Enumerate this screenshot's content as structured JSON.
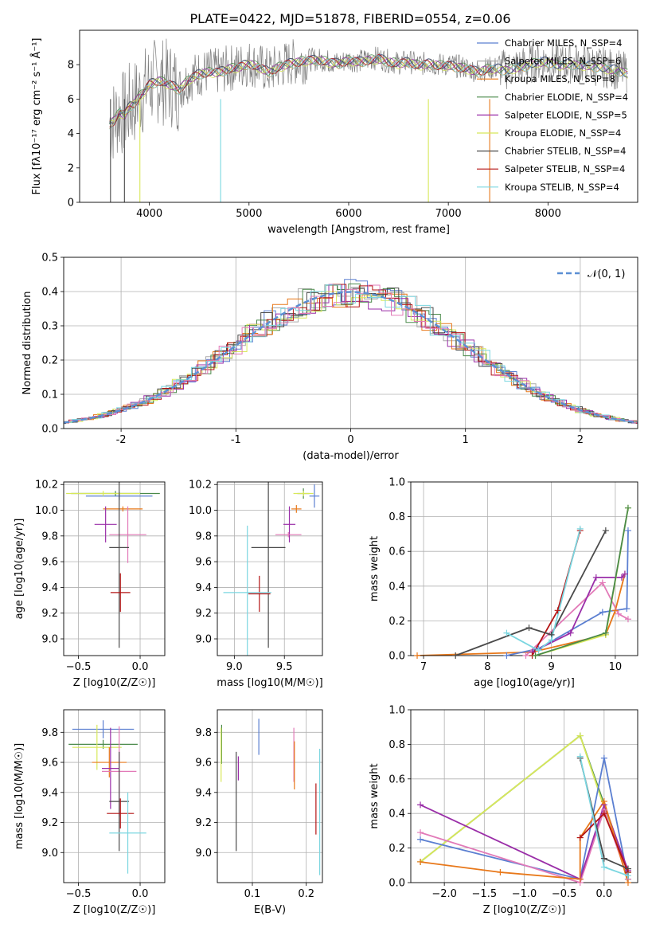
{
  "figure": {
    "title": "PLATE=0422, MJD=51878, FIBERID=0554, z=0.06"
  },
  "colors": {
    "Chabrier MILES": "#5b7fd1",
    "Salpeter MILES": "#aaaaaa",
    "Kroupa MILES": "#e8781a",
    "Chabrier ELODIE": "#4a8a4a",
    "Salpeter ELODIE": "#9a2ea8",
    "Kroupa ELODIE": "#d8e85a",
    "Chabrier STELIB": "#4a4a4a",
    "Salpeter STELIB": "#b41414",
    "Kroupa STELIB": "#7ad6e0",
    "pink": "#e27ab8",
    "data": "#7f7f7f",
    "normal": "#5b8fd4"
  },
  "chart_data": [
    {
      "id": "spectrum",
      "type": "line",
      "title": "PLATE=0422, MJD=51878, FIBERID=0554, z=0.06",
      "xlabel": "wavelength [Angstrom, rest frame]",
      "ylabel": "Flux [fλ10⁻¹⁷ erg cm⁻² s⁻¹ Å⁻¹]",
      "xlim": [
        3300,
        8900
      ],
      "ylim": [
        0,
        10
      ],
      "xticks": [
        4000,
        5000,
        6000,
        7000,
        8000
      ],
      "yticks": [
        0,
        2,
        4,
        6,
        8
      ],
      "grid": false,
      "legend_position": "top-right",
      "series": [
        {
          "name": "Chabrier MILES, N_SSP=4",
          "color": "#5b7fd1"
        },
        {
          "name": "Salpeter MILES, N_SSP=6",
          "color": "#aaaaaa"
        },
        {
          "name": "Kroupa MILES, N_SSP=8",
          "color": "#e8781a"
        },
        {
          "name": "Chabrier ELODIE, N_SSP=4",
          "color": "#4a8a4a"
        },
        {
          "name": "Salpeter ELODIE, N_SSP=5",
          "color": "#9a2ea8"
        },
        {
          "name": "Kroupa ELODIE, N_SSP=4",
          "color": "#d8e85a"
        },
        {
          "name": "Chabrier STELIB, N_SSP=4",
          "color": "#4a4a4a"
        },
        {
          "name": "Salpeter STELIB, N_SSP=4",
          "color": "#b41414"
        },
        {
          "name": "Kroupa STELIB, N_SSP=4",
          "color": "#7ad6e0"
        }
      ],
      "data_spectrum_x": [
        3600,
        3650,
        3700,
        3750,
        3800,
        3850,
        3900,
        3950,
        4000,
        4100,
        4200,
        4300,
        4400,
        4500,
        4600,
        4700,
        4800,
        4900,
        5000,
        5100,
        5200,
        5300,
        5400,
        5500,
        5600,
        5700,
        5800,
        5900,
        6000,
        6100,
        6200,
        6300,
        6400,
        6500,
        6600,
        6700,
        6800,
        6900,
        7000,
        7100,
        7200,
        7300,
        7400,
        7500,
        7600,
        7700,
        7800,
        7900,
        8000,
        8100,
        8200,
        8300,
        8400,
        8500,
        8600,
        8700,
        8800
      ],
      "model_y": [
        4.6,
        4.8,
        5.3,
        5.1,
        5.6,
        5.8,
        6.2,
        6.5,
        6.9,
        7.1,
        6.9,
        6.6,
        7.2,
        7.5,
        7.6,
        7.6,
        7.8,
        7.9,
        8.1,
        7.9,
        7.6,
        7.9,
        8.1,
        8.2,
        8.3,
        8.3,
        8.2,
        8.1,
        8.3,
        8.2,
        8.3,
        8.4,
        8.2,
        8.1,
        8.2,
        8.0,
        8.1,
        8.0,
        8.0,
        7.9,
        7.8,
        7.6,
        7.8,
        7.8,
        7.7,
        7.9,
        8.0,
        8.2,
        8.2,
        8.0,
        8.1,
        8.0,
        8.0,
        7.9,
        7.8,
        7.7,
        7.5
      ]
    },
    {
      "id": "residuals",
      "type": "histogram",
      "xlabel": "(data-model)/error",
      "ylabel": "Normed distribution",
      "xlim": [
        -2.5,
        2.5
      ],
      "ylim": [
        0,
        0.5
      ],
      "xticks": [
        -2,
        -1,
        0,
        1,
        2
      ],
      "yticks": [
        0.0,
        0.1,
        0.2,
        0.3,
        0.4,
        0.5
      ],
      "grid": true,
      "legend_position": "top-right",
      "legend": "𝒩(0, 1)"
    },
    {
      "id": "age-Z",
      "type": "errorbar",
      "xlabel": "Z [log10(Z/Z☉)]",
      "ylabel": "age  [log10(age/yr)]",
      "xlim": [
        -0.62,
        0.2
      ],
      "ylim": [
        8.87,
        10.22
      ],
      "xticks": [
        -0.5,
        0.0
      ],
      "yticks": [
        9.0,
        9.2,
        9.4,
        9.6,
        9.8,
        10.0,
        10.2
      ],
      "grid": true,
      "points": [
        {
          "color": "#5b7fd1",
          "x": -0.17,
          "xerr": 0.27,
          "y": 10.11,
          "yerr": 0.03
        },
        {
          "color": "#4a8a4a",
          "x": -0.2,
          "xerr": 0.36,
          "y": 10.13,
          "yerr": 0.02
        },
        {
          "color": "#e8781a",
          "x": -0.14,
          "xerr": 0.16,
          "y": 10.01,
          "yerr": 0.02
        },
        {
          "color": "#d8e85a",
          "x": -0.3,
          "xerr": 0.3,
          "y": 10.13,
          "yerr": 0.02
        },
        {
          "color": "#9a2ea8",
          "x": -0.28,
          "xerr": 0.09,
          "y": 9.89,
          "yerr": 0.14
        },
        {
          "color": "#e27ab8",
          "x": -0.1,
          "xerr": 0.15,
          "y": 9.81,
          "yerr": 0.22
        },
        {
          "color": "#4a4a4a",
          "x": -0.17,
          "xerr": 0.08,
          "y": 9.71,
          "yerr": 0.78
        },
        {
          "color": "#b41414",
          "x": -0.16,
          "xerr": 0.08,
          "y": 9.36,
          "yerr": 0.15
        }
      ]
    },
    {
      "id": "age-mass",
      "type": "errorbar",
      "xlabel": "mass [log10(M/M☉)]",
      "ylabel": "",
      "xlim": [
        8.83,
        9.88
      ],
      "ylim": [
        8.87,
        10.22
      ],
      "xticks": [
        9.0,
        9.5
      ],
      "yticks": [
        9.0,
        9.2,
        9.4,
        9.6,
        9.8,
        10.0,
        10.2
      ],
      "grid": true,
      "points": [
        {
          "color": "#5b7fd1",
          "x": 9.8,
          "xerr": 0.05,
          "y": 10.11,
          "yerr": 0.09
        },
        {
          "color": "#4a8a4a",
          "x": 9.69,
          "xerr": 0.06,
          "y": 10.13,
          "yerr": 0.04
        },
        {
          "color": "#e8781a",
          "x": 9.62,
          "xerr": 0.05,
          "y": 10.01,
          "yerr": 0.03
        },
        {
          "color": "#d8e85a",
          "x": 9.69,
          "xerr": 0.1,
          "y": 10.13,
          "yerr": 0.02
        },
        {
          "color": "#9a2ea8",
          "x": 9.55,
          "xerr": 0.06,
          "y": 9.89,
          "yerr": 0.14
        },
        {
          "color": "#e27ab8",
          "x": 9.54,
          "xerr": 0.13,
          "y": 9.81,
          "yerr": 0.02
        },
        {
          "color": "#4a4a4a",
          "x": 9.34,
          "xerr": 0.17,
          "y": 9.71,
          "yerr": 0.78
        },
        {
          "color": "#b41414",
          "x": 9.25,
          "xerr": 0.11,
          "y": 9.35,
          "yerr": 0.14
        },
        {
          "color": "#7ad6e0",
          "x": 9.13,
          "xerr": 0.24,
          "y": 9.36,
          "yerr": 0.52
        }
      ]
    },
    {
      "id": "weight-age",
      "type": "line",
      "xlabel": "age  [log10(age/yr)]",
      "ylabel": "mass weight",
      "xlim": [
        6.8,
        10.35
      ],
      "ylim": [
        0,
        1
      ],
      "xticks": [
        7,
        8,
        9,
        10
      ],
      "yticks": [
        0.0,
        0.2,
        0.4,
        0.6,
        0.8,
        1.0
      ],
      "grid": true,
      "series": [
        {
          "color": "#e8781a",
          "x": [
            6.9,
            8.7,
            9.85,
            10.0,
            10.15
          ],
          "y": [
            0.0,
            0.02,
            0.12,
            0.26,
            0.47
          ]
        },
        {
          "color": "#5b7fd1",
          "x": [
            8.3,
            8.8,
            9.8,
            10.18,
            10.2
          ],
          "y": [
            0.0,
            0.04,
            0.25,
            0.27,
            0.72
          ]
        },
        {
          "color": "#e27ab8",
          "x": [
            8.6,
            9.8,
            10.05,
            10.2
          ],
          "y": [
            0.0,
            0.42,
            0.24,
            0.21
          ]
        },
        {
          "color": "#9a2ea8",
          "x": [
            8.7,
            9.3,
            9.7,
            10.1,
            10.15
          ],
          "y": [
            0.02,
            0.13,
            0.45,
            0.45,
            0.47
          ]
        },
        {
          "color": "#b41414",
          "x": [
            8.7,
            9.1,
            9.45
          ],
          "y": [
            0.0,
            0.26,
            0.72
          ]
        },
        {
          "color": "#4a4a4a",
          "x": [
            7.5,
            8.65,
            9.0,
            9.85
          ],
          "y": [
            0.0,
            0.16,
            0.12,
            0.72
          ]
        },
        {
          "color": "#7ad6e0",
          "x": [
            8.3,
            8.8,
            9.0,
            9.45
          ],
          "y": [
            0.13,
            0.03,
            0.09,
            0.73
          ]
        },
        {
          "color": "#d8e85a",
          "x": [
            8.75,
            9.85,
            10.2
          ],
          "y": [
            0.0,
            0.12,
            0.85
          ]
        },
        {
          "color": "#4a8a4a",
          "x": [
            8.75,
            9.85,
            10.2
          ],
          "y": [
            0.0,
            0.13,
            0.85
          ]
        }
      ]
    },
    {
      "id": "mass-Z",
      "type": "errorbar",
      "xlabel": "Z [log10(Z/Z☉)]",
      "ylabel": "mass [log10(M/M☉)]",
      "xlim": [
        -0.62,
        0.2
      ],
      "ylim": [
        8.8,
        9.95
      ],
      "xticks": [
        -0.5,
        0.0
      ],
      "yticks": [
        9.0,
        9.2,
        9.4,
        9.6,
        9.8
      ],
      "grid": true,
      "points": [
        {
          "color": "#5b7fd1",
          "x": -0.3,
          "xerr": 0.25,
          "y": 9.82,
          "yerr": 0.06
        },
        {
          "color": "#4a8a4a",
          "x": -0.3,
          "xerr": 0.28,
          "y": 9.72,
          "yerr": 0.03
        },
        {
          "color": "#d8e85a",
          "x": -0.35,
          "xerr": 0.2,
          "y": 9.7,
          "yerr": 0.15
        },
        {
          "color": "#e8781a",
          "x": -0.25,
          "xerr": 0.14,
          "y": 9.6,
          "yerr": 0.1
        },
        {
          "color": "#9a2ea8",
          "x": -0.24,
          "xerr": 0.07,
          "y": 9.56,
          "yerr": 0.27
        },
        {
          "color": "#e27ab8",
          "x": -0.17,
          "xerr": 0.14,
          "y": 9.54,
          "yerr": 0.3
        },
        {
          "color": "#4a4a4a",
          "x": -0.17,
          "xerr": 0.08,
          "y": 9.34,
          "yerr": 0.33
        },
        {
          "color": "#b41414",
          "x": -0.16,
          "xerr": 0.11,
          "y": 9.26,
          "yerr": 0.1
        },
        {
          "color": "#7ad6e0",
          "x": -0.1,
          "xerr": 0.15,
          "y": 9.13,
          "yerr": 0.27
        }
      ]
    },
    {
      "id": "mass-ebv",
      "type": "errorbar",
      "xlabel": "E(B-V)",
      "ylabel": "",
      "xlim": [
        0.035,
        0.23
      ],
      "ylim": [
        8.8,
        9.95
      ],
      "xticks": [
        0.1,
        0.2
      ],
      "yticks": [
        9.0,
        9.2,
        9.4,
        9.6,
        9.8
      ],
      "grid": true,
      "points": [
        {
          "color": "#4a8a4a",
          "x": 0.043,
          "y": 9.72,
          "yerr": 0.13
        },
        {
          "color": "#d8e85a",
          "x": 0.042,
          "y": 9.65,
          "yerr": 0.18
        },
        {
          "color": "#4a4a4a",
          "x": 0.07,
          "y": 9.34,
          "yerr": 0.33
        },
        {
          "color": "#9a2ea8",
          "x": 0.074,
          "y": 9.56,
          "yerr": 0.08
        },
        {
          "color": "#5b7fd1",
          "x": 0.112,
          "y": 9.77,
          "yerr": 0.12
        },
        {
          "color": "#e27ab8",
          "x": 0.177,
          "y": 9.65,
          "yerr": 0.18
        },
        {
          "color": "#e8781a",
          "x": 0.178,
          "y": 9.58,
          "yerr": 0.16
        },
        {
          "color": "#b41414",
          "x": 0.218,
          "y": 9.29,
          "yerr": 0.17
        },
        {
          "color": "#7ad6e0",
          "x": 0.225,
          "y": 9.27,
          "yerr": 0.42
        }
      ]
    },
    {
      "id": "weight-Z",
      "type": "line",
      "xlabel": "Z [log10(Z/Z☉)]",
      "ylabel": "mass weight",
      "xlim": [
        -2.42,
        0.42
      ],
      "ylim": [
        0,
        1
      ],
      "xticks": [
        -2.0,
        -1.5,
        -1.0,
        -0.5,
        0.0
      ],
      "yticks": [
        0.0,
        0.2,
        0.4,
        0.6,
        0.8,
        1.0
      ],
      "grid": true,
      "series": [
        {
          "color": "#4a8a4a",
          "x": [
            -2.3,
            -0.3,
            0.3,
            0.3
          ],
          "y": [
            0.12,
            0.85,
            0.06,
            0.02
          ]
        },
        {
          "color": "#d8e85a",
          "x": [
            -2.3,
            -0.3,
            0.3
          ],
          "y": [
            0.12,
            0.85,
            0.02
          ]
        },
        {
          "color": "#5b7fd1",
          "x": [
            -2.3,
            -0.3,
            0.0,
            0.3
          ],
          "y": [
            0.25,
            0.02,
            0.72,
            0.02
          ]
        },
        {
          "color": "#e27ab8",
          "x": [
            -2.3,
            -0.3,
            0.0,
            0.3
          ],
          "y": [
            0.29,
            0.0,
            0.42,
            0.02
          ]
        },
        {
          "color": "#9a2ea8",
          "x": [
            -2.3,
            -0.3,
            0.0,
            0.3
          ],
          "y": [
            0.45,
            0.02,
            0.45,
            0.07
          ]
        },
        {
          "color": "#e8781a",
          "x": [
            -2.3,
            -1.3,
            -0.3,
            -0.3,
            0.0,
            0.3
          ],
          "y": [
            0.12,
            0.06,
            0.02,
            0.26,
            0.47,
            0.0
          ]
        },
        {
          "color": "#4a4a4a",
          "x": [
            -0.3,
            0.0,
            0.3
          ],
          "y": [
            0.72,
            0.14,
            0.08
          ]
        },
        {
          "color": "#b41414",
          "x": [
            -0.3,
            0.0,
            0.3
          ],
          "y": [
            0.26,
            0.4,
            0.06
          ]
        },
        {
          "color": "#7ad6e0",
          "x": [
            -0.3,
            0.0,
            0.3
          ],
          "y": [
            0.73,
            0.09,
            0.04
          ]
        }
      ]
    }
  ]
}
